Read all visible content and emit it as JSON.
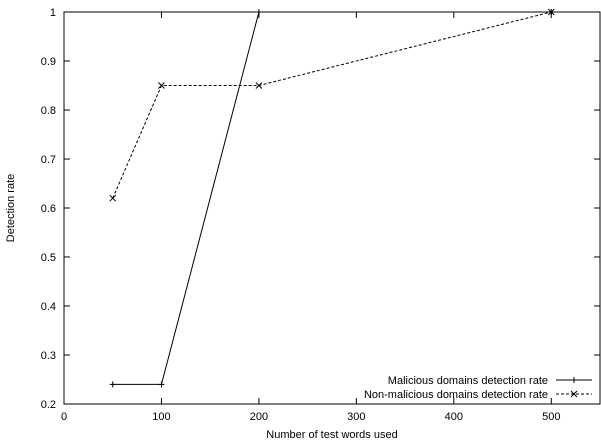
{
  "chart_data": {
    "type": "line",
    "title": "",
    "xlabel": "Number of test words used",
    "ylabel": "Detection rate",
    "xlim": [
      0,
      550
    ],
    "ylim": [
      0.2,
      1
    ],
    "xticks": [
      0,
      100,
      200,
      300,
      400,
      500
    ],
    "yticks": [
      0.2,
      0.3,
      0.4,
      0.5,
      0.6,
      0.7,
      0.8,
      0.9,
      1
    ],
    "grid": false,
    "legend_position": "bottom-right",
    "series": [
      {
        "name": "Malicious domains detection rate",
        "x": [
          50,
          100,
          200,
          500
        ],
        "y": [
          0.24,
          0.24,
          1.0,
          1.0
        ],
        "line_style": "solid",
        "marker": "plus"
      },
      {
        "name": "Non-malicious domains detection rate",
        "x": [
          50,
          100,
          200,
          500
        ],
        "y": [
          0.62,
          0.85,
          0.85,
          1.0
        ],
        "line_style": "dashed",
        "marker": "cross"
      }
    ]
  }
}
